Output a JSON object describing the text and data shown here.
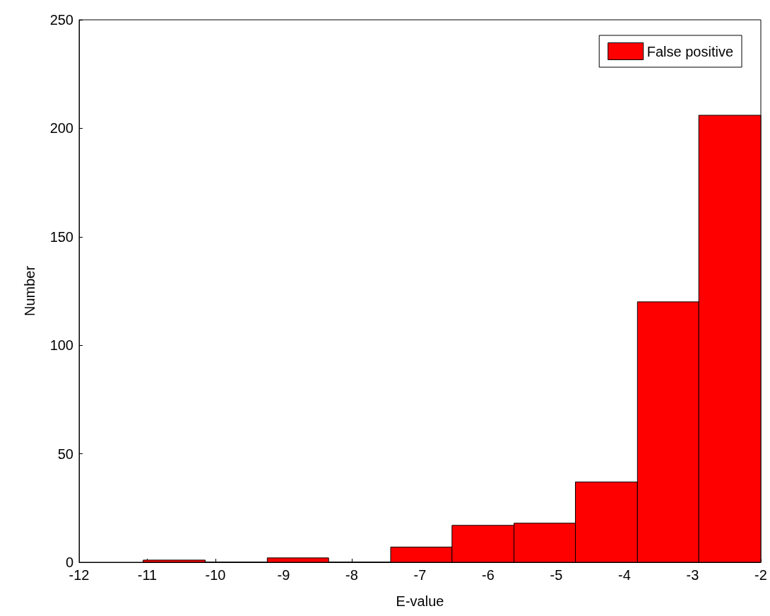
{
  "chart_data": {
    "type": "histogram",
    "xlabel": "E-value",
    "ylabel": "Number",
    "bins": [
      -11.06,
      -10.15,
      -9.24,
      -8.34,
      -7.43,
      -6.53,
      -5.62,
      -4.72,
      -3.81,
      -2.91,
      -2.0
    ],
    "series": [
      {
        "name": "False positive",
        "color": "#ff0000",
        "values": [
          1,
          0,
          2,
          0,
          7,
          17,
          18,
          37,
          120,
          206
        ]
      }
    ],
    "xlim": [
      -12,
      -2
    ],
    "xticks": [
      -12,
      -11,
      -10,
      -9,
      -8,
      -7,
      -6,
      -5,
      -4,
      -3,
      -2
    ],
    "ylim": [
      0,
      250
    ],
    "yticks": [
      0,
      50,
      100,
      150,
      200,
      250
    ],
    "grid": false,
    "legend": "top right"
  }
}
